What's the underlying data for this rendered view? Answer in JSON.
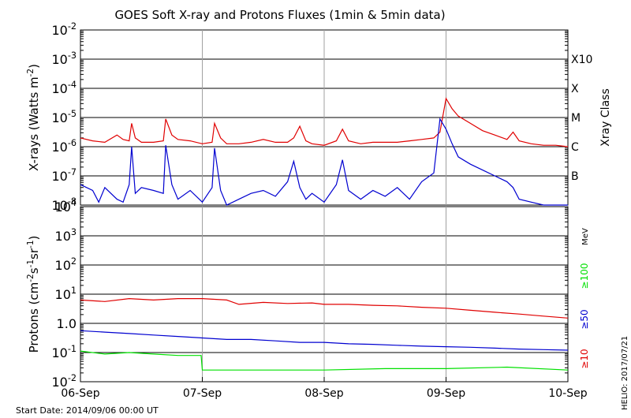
{
  "title": "GOES Soft X-ray and Protons Fluxes   (1min & 5min data)",
  "start_date": "Start Date: 2014/09/06 00:00 UT",
  "credit": "HELIO: 2017/07/21",
  "colors": {
    "red": "#e00000",
    "blue": "#0000d0",
    "green": "#00e000",
    "grid": "#000000",
    "vline": "#a0a0a0"
  },
  "chart_data": [
    {
      "type": "line",
      "panel": "xray",
      "ylabel": "X-rays (Watts m-2)",
      "ylabel_parts": [
        "X-rays (Watts m",
        "-2",
        ")"
      ],
      "right_label": "Xray Class",
      "y_scale": "log",
      "ylim_exp": [
        -8,
        -2
      ],
      "ytick_exponents": [
        "-2",
        "-3",
        "-4",
        "-5",
        "-6",
        "-7",
        "-8"
      ],
      "class_labels": [
        {
          "label": "X10",
          "exp": -3
        },
        {
          "label": "X",
          "exp": -4
        },
        {
          "label": "M",
          "exp": -5
        },
        {
          "label": "C",
          "exp": -6
        },
        {
          "label": "B",
          "exp": -7
        }
      ],
      "series": [
        {
          "color": "red",
          "x": [
            0,
            0.1,
            0.2,
            0.3,
            0.35,
            0.4,
            0.42,
            0.45,
            0.5,
            0.6,
            0.68,
            0.7,
            0.75,
            0.8,
            0.9,
            1.0,
            1.08,
            1.1,
            1.15,
            1.2,
            1.3,
            1.4,
            1.5,
            1.6,
            1.7,
            1.75,
            1.8,
            1.85,
            1.9,
            2.0,
            2.1,
            2.15,
            2.2,
            2.3,
            2.4,
            2.5,
            2.6,
            2.7,
            2.8,
            2.9,
            2.95,
            3.0,
            3.05,
            3.1,
            3.2,
            3.3,
            3.4,
            3.5,
            3.55,
            3.6,
            3.7,
            3.8,
            3.9,
            4.0
          ],
          "y": [
            -5.7,
            -5.8,
            -5.85,
            -5.6,
            -5.75,
            -5.8,
            -5.2,
            -5.7,
            -5.85,
            -5.85,
            -5.8,
            -5.05,
            -5.6,
            -5.75,
            -5.8,
            -5.9,
            -5.85,
            -5.2,
            -5.7,
            -5.9,
            -5.9,
            -5.85,
            -5.75,
            -5.85,
            -5.85,
            -5.7,
            -5.3,
            -5.8,
            -5.9,
            -5.95,
            -5.8,
            -5.4,
            -5.8,
            -5.9,
            -5.85,
            -5.85,
            -5.85,
            -5.8,
            -5.75,
            -5.7,
            -5.5,
            -4.35,
            -4.7,
            -4.95,
            -5.2,
            -5.45,
            -5.6,
            -5.75,
            -5.5,
            -5.8,
            -5.9,
            -5.95,
            -5.95,
            -6.0
          ]
        },
        {
          "color": "blue",
          "x": [
            0,
            0.1,
            0.15,
            0.2,
            0.3,
            0.35,
            0.4,
            0.42,
            0.45,
            0.5,
            0.6,
            0.68,
            0.7,
            0.75,
            0.8,
            0.9,
            1.0,
            1.08,
            1.1,
            1.15,
            1.2,
            1.3,
            1.4,
            1.5,
            1.6,
            1.7,
            1.75,
            1.8,
            1.85,
            1.9,
            2.0,
            2.1,
            2.15,
            2.2,
            2.3,
            2.4,
            2.5,
            2.6,
            2.7,
            2.8,
            2.9,
            2.95,
            3.0,
            3.05,
            3.1,
            3.2,
            3.3,
            3.4,
            3.5,
            3.55,
            3.6,
            3.7,
            3.8,
            3.9,
            4.0
          ],
          "y": [
            -7.3,
            -7.5,
            -7.9,
            -7.4,
            -7.8,
            -7.9,
            -7.3,
            -6.0,
            -7.6,
            -7.4,
            -7.5,
            -7.6,
            -5.95,
            -7.3,
            -7.8,
            -7.5,
            -7.9,
            -7.4,
            -6.05,
            -7.5,
            -8.0,
            -7.8,
            -7.6,
            -7.5,
            -7.7,
            -7.2,
            -6.5,
            -7.4,
            -7.8,
            -7.6,
            -7.9,
            -7.3,
            -6.45,
            -7.5,
            -7.8,
            -7.5,
            -7.7,
            -7.4,
            -7.8,
            -7.2,
            -6.9,
            -5.05,
            -5.4,
            -5.9,
            -6.35,
            -6.6,
            -6.8,
            -7.0,
            -7.2,
            -7.4,
            -7.8,
            -7.9,
            -8.0,
            -8.0,
            -8.0
          ]
        }
      ]
    },
    {
      "type": "line",
      "panel": "protons",
      "ylabel": "Protons (cm-2s-1sr-1)",
      "ylabel_parts": [
        "Protons (cm",
        "-2",
        "s",
        "-1",
        "sr",
        "-1",
        ")"
      ],
      "right_label": "MeV",
      "y_scale": "log",
      "ylim_exp": [
        -2,
        4
      ],
      "ytick_labels": [
        {
          "base": "10",
          "exp": "4",
          "val": 4
        },
        {
          "base": "10",
          "exp": "3",
          "val": 3
        },
        {
          "base": "10",
          "exp": "2",
          "val": 2
        },
        {
          "base": "10",
          "exp": "1",
          "val": 1
        },
        {
          "base": "1.0",
          "exp": "",
          "val": 0
        },
        {
          "base": "10",
          "exp": "-1",
          "val": -1
        },
        {
          "base": "10",
          "exp": "-2",
          "val": -2
        }
      ],
      "threshold_exp": 1,
      "energy_labels": [
        {
          "label": "≥100",
          "color": "green"
        },
        {
          "label": "≥50",
          "color": "blue"
        },
        {
          "label": "≥10",
          "color": "red"
        }
      ],
      "series": [
        {
          "color": "red",
          "x": [
            0,
            0.2,
            0.4,
            0.6,
            0.8,
            1.0,
            1.2,
            1.3,
            1.5,
            1.7,
            1.9,
            2.0,
            2.2,
            2.4,
            2.6,
            2.8,
            3.0,
            3.2,
            3.4,
            3.6,
            3.8,
            4.0
          ],
          "y": [
            0.8,
            0.75,
            0.85,
            0.8,
            0.85,
            0.85,
            0.8,
            0.65,
            0.72,
            0.68,
            0.7,
            0.65,
            0.65,
            0.62,
            0.6,
            0.55,
            0.52,
            0.45,
            0.38,
            0.32,
            0.25,
            0.18
          ]
        },
        {
          "color": "blue",
          "x": [
            0,
            0.2,
            0.4,
            0.6,
            0.8,
            1.0,
            1.2,
            1.4,
            1.6,
            1.8,
            2.0,
            2.2,
            2.4,
            2.6,
            2.8,
            3.0,
            3.2,
            3.4,
            3.6,
            3.8,
            4.0
          ],
          "y": [
            -0.25,
            -0.3,
            -0.35,
            -0.4,
            -0.45,
            -0.5,
            -0.55,
            -0.55,
            -0.6,
            -0.65,
            -0.65,
            -0.7,
            -0.72,
            -0.75,
            -0.78,
            -0.8,
            -0.82,
            -0.85,
            -0.88,
            -0.9,
            -0.92
          ]
        },
        {
          "color": "green",
          "x": [
            0,
            0.2,
            0.4,
            0.6,
            0.8,
            0.99,
            1.0,
            1.5,
            2.0,
            2.5,
            3.0,
            3.5,
            4.0
          ],
          "y": [
            -0.95,
            -1.05,
            -1.0,
            -1.05,
            -1.1,
            -1.1,
            -1.6,
            -1.6,
            -1.6,
            -1.55,
            -1.55,
            -1.5,
            -1.6
          ]
        }
      ]
    }
  ],
  "x_axis": {
    "ticks": [
      "06-Sep",
      "07-Sep",
      "08-Sep",
      "09-Sep",
      "10-Sep"
    ],
    "range_days": [
      0,
      4
    ]
  }
}
